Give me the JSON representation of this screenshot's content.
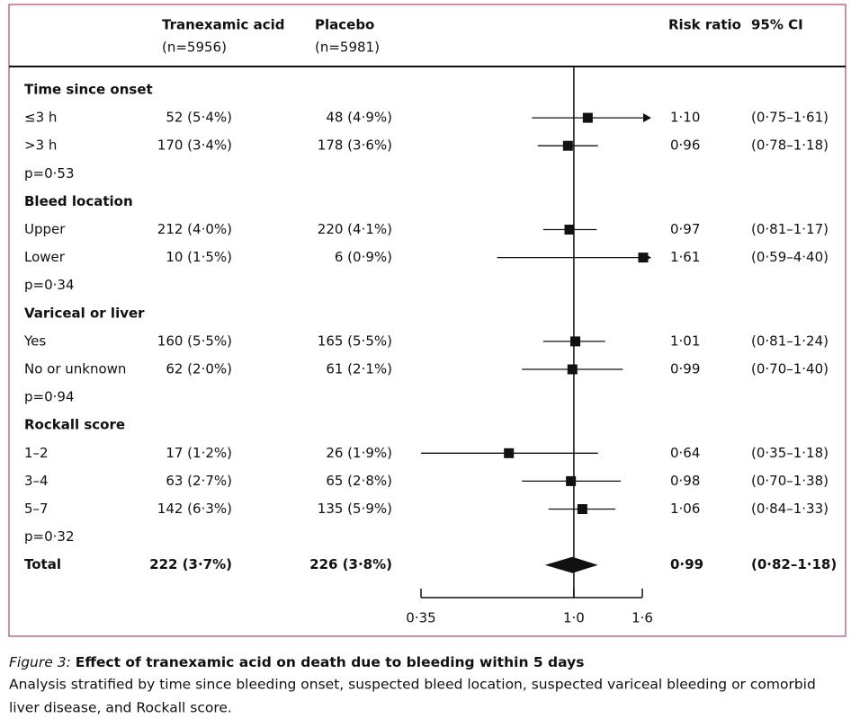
{
  "chart_data": {
    "type": "forest",
    "headers": {
      "treatment": "Tranexamic acid",
      "treatment_n": "(n=5956)",
      "placebo": "Placebo",
      "placebo_n": "(n=5981)",
      "rr": "Risk ratio",
      "ci": "95% CI"
    },
    "log_scale": true,
    "xlim": [
      0.35,
      1.6
    ],
    "xticks": [
      {
        "value": 0.35,
        "label": "0·35"
      },
      {
        "value": 1.0,
        "label": "1·0"
      },
      {
        "value": 1.6,
        "label": "1·6"
      }
    ],
    "groups": [
      {
        "name": "Time since onset",
        "p": "p=0·53",
        "rows": [
          {
            "label": "≤3 h",
            "treatment": "52 (5·4%)",
            "placebo": "48 (4·9%)",
            "rr": 1.1,
            "rr_label": "1·10",
            "ci": [
              0.75,
              1.61
            ],
            "ci_label": "(0·75–1·61)"
          },
          {
            "label": ">3 h",
            "treatment": "170 (3·4%)",
            "placebo": "178 (3·6%)",
            "rr": 0.96,
            "rr_label": "0·96",
            "ci": [
              0.78,
              1.18
            ],
            "ci_label": "(0·78–1·18)"
          }
        ]
      },
      {
        "name": "Bleed location",
        "p": "p=0·34",
        "rows": [
          {
            "label": "Upper",
            "treatment": "212 (4·0%)",
            "placebo": "220 (4·1%)",
            "rr": 0.97,
            "rr_label": "0·97",
            "ci": [
              0.81,
              1.17
            ],
            "ci_label": "(0·81–1·17)"
          },
          {
            "label": "Lower",
            "treatment": "10 (1·5%)",
            "placebo": "6 (0·9%)",
            "rr": 1.61,
            "rr_label": "1·61",
            "ci": [
              0.59,
              4.4
            ],
            "ci_label": "(0·59–4·40)"
          }
        ]
      },
      {
        "name": "Variceal or liver",
        "p": "p=0·94",
        "rows": [
          {
            "label": "Yes",
            "treatment": "160 (5·5%)",
            "placebo": "165 (5·5%)",
            "rr": 1.01,
            "rr_label": "1·01",
            "ci": [
              0.81,
              1.24
            ],
            "ci_label": "(0·81–1·24)"
          },
          {
            "label": "No or unknown",
            "treatment": "62 (2·0%)",
            "placebo": "61 (2·1%)",
            "rr": 0.99,
            "rr_label": "0·99",
            "ci": [
              0.7,
              1.4
            ],
            "ci_label": "(0·70–1·40)"
          }
        ]
      },
      {
        "name": "Rockall score",
        "p": "p=0·32",
        "rows": [
          {
            "label": "1–2",
            "treatment": "17 (1·2%)",
            "placebo": "26 (1·9%)",
            "rr": 0.64,
            "rr_label": "0·64",
            "ci": [
              0.35,
              1.18
            ],
            "ci_label": "(0·35–1·18)"
          },
          {
            "label": "3–4",
            "treatment": "63 (2·7%)",
            "placebo": "65 (2·8%)",
            "rr": 0.98,
            "rr_label": "0·98",
            "ci": [
              0.7,
              1.38
            ],
            "ci_label": "(0·70–1·38)"
          },
          {
            "label": "5–7",
            "treatment": "142 (6·3%)",
            "placebo": "135 (5·9%)",
            "rr": 1.06,
            "rr_label": "1·06",
            "ci": [
              0.84,
              1.33
            ],
            "ci_label": "(0·84–1·33)"
          }
        ]
      }
    ],
    "total": {
      "label": "Total",
      "treatment": "222 (3·7%)",
      "placebo": "226 (3·8%)",
      "rr": 0.99,
      "rr_label": "0·99",
      "ci": [
        0.82,
        1.18
      ],
      "ci_label": "(0·82–1·18)"
    },
    "caption": {
      "label": "Figure 3:",
      "title": "Effect of tranexamic acid on death due to bleeding within 5 days",
      "text": [
        "Analysis stratified by time since bleeding onset, suspected bleed location, suspected variceal bleeding or comorbid",
        "liver disease, and Rockall score."
      ]
    }
  }
}
